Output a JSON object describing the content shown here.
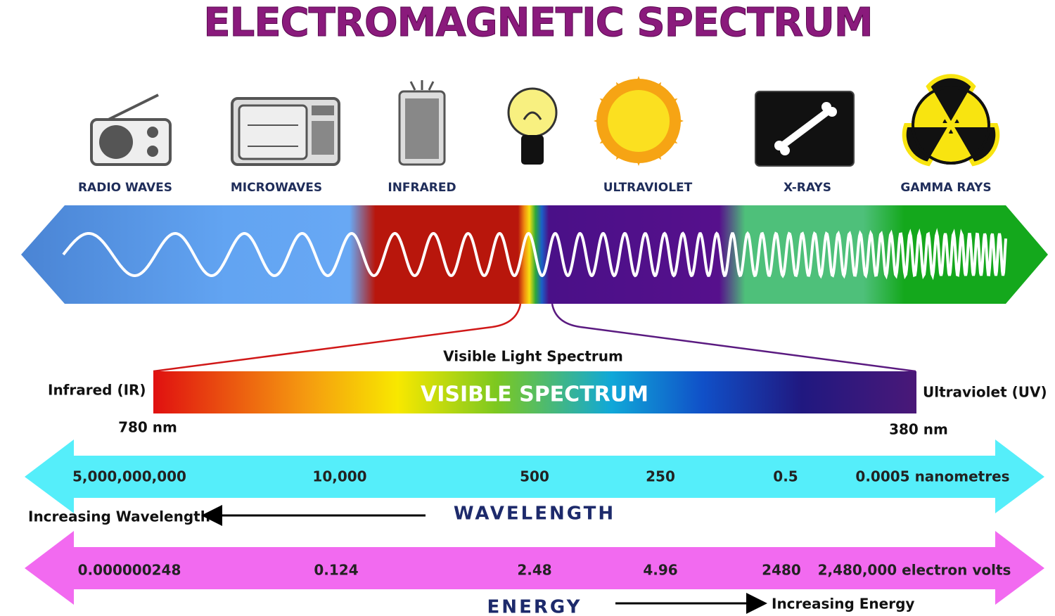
{
  "title": "ELECTROMAGNETIC SPECTRUM",
  "bands": [
    "RADIO WAVES",
    "MICROWAVES",
    "INFRARED",
    "ULTRAVIOLET",
    "X-RAYS",
    "GAMMA RAYS"
  ],
  "visible": {
    "title": "Visible Light Spectrum",
    "bar_label": "VISIBLE SPECTRUM",
    "left": "Infrared (IR)",
    "right": "Ultraviolet (UV)",
    "left_nm": "780 nm",
    "right_nm": "380 nm"
  },
  "wavelength": {
    "values": [
      "5,000,000,000",
      "10,000",
      "500",
      "250",
      "0.5",
      "0.0005 nanometres"
    ],
    "axis": "WAVELENGTH",
    "direction": "Increasing Wavelength"
  },
  "energy": {
    "values": [
      "0.000000248",
      "0.124",
      "2.48",
      "4.96",
      "2480",
      "2,480,000 electron volts"
    ],
    "axis": "ENERGY",
    "direction": "Increasing Energy"
  }
}
